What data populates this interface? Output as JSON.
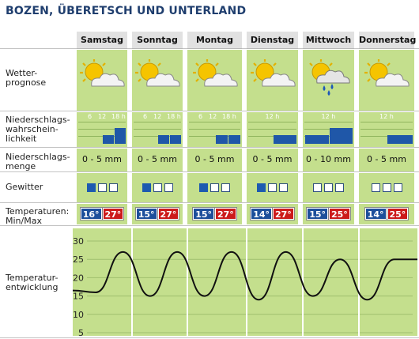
{
  "header": {
    "title": "BOZEN, ÜBERETSCH UND UNTERLAND"
  },
  "rows": {
    "forecast": "Wetter-\nprognose",
    "probability": "Niederschlags-\nwahrschein-\nlichkeit",
    "amount": "Niederschlags-\nmenge",
    "thunder": "Gewitter",
    "temps": "Temperaturen:\nMin/Max",
    "trend": "Temperatur-\nentwicklung"
  },
  "days": [
    {
      "name": "Samstag",
      "weather": "partly-cloudy-icon",
      "ticks": [
        "6",
        "12",
        "18 h"
      ],
      "amount": "0 - 5 mm",
      "thunder": [
        1,
        0,
        0
      ],
      "min": "16°",
      "max": "27°",
      "prob": [
        0,
        0,
        0.35,
        0.65
      ]
    },
    {
      "name": "Sonntag",
      "weather": "partly-cloudy-icon",
      "ticks": [
        "6",
        "12",
        "18 h"
      ],
      "amount": "0 - 5 mm",
      "thunder": [
        1,
        0,
        0
      ],
      "min": "15°",
      "max": "27°",
      "prob": [
        0,
        0,
        0.35,
        0.35
      ]
    },
    {
      "name": "Montag",
      "weather": "partly-cloudy-icon",
      "ticks": [
        "6",
        "12",
        "18 h"
      ],
      "amount": "0 - 5 mm",
      "thunder": [
        1,
        0,
        0
      ],
      "min": "15°",
      "max": "27°",
      "prob": [
        0,
        0,
        0.35,
        0.35
      ]
    },
    {
      "name": "Dienstag",
      "weather": "partly-cloudy-icon",
      "ticks": [
        "12 h"
      ],
      "amount": "0 - 5 mm",
      "thunder": [
        1,
        0,
        0
      ],
      "min": "14°",
      "max": "27°",
      "prob": [
        0,
        0.35
      ]
    },
    {
      "name": "Mittwoch",
      "weather": "rain-cloud-icon",
      "ticks": [
        "12 h"
      ],
      "amount": "0 - 10 mm",
      "thunder": [
        0,
        0,
        0
      ],
      "min": "15°",
      "max": "25°",
      "prob": [
        0.35,
        0.65
      ]
    },
    {
      "name": "Donnerstag",
      "weather": "partly-cloudy-icon",
      "ticks": [
        "12 h"
      ],
      "amount": "0 - 5 mm",
      "thunder": [
        0,
        0,
        0
      ],
      "min": "14°",
      "max": "25°",
      "prob": [
        0,
        0.35
      ]
    }
  ],
  "chart_data": {
    "type": "line",
    "title": "",
    "xlabel": "",
    "ylabel": "",
    "yticks": [
      30,
      25,
      20,
      15,
      10,
      5
    ],
    "ylim": [
      5,
      30
    ],
    "series": [
      {
        "values": [
          16,
          27,
          15,
          27,
          15,
          27,
          14,
          27,
          15,
          25,
          14,
          25
        ]
      }
    ]
  },
  "colors": {
    "cell": "#c4df8d",
    "header": "#e1e1e1",
    "bar": "#1f57a8",
    "min": "#1d4f9b",
    "max": "#cc1a1a"
  }
}
